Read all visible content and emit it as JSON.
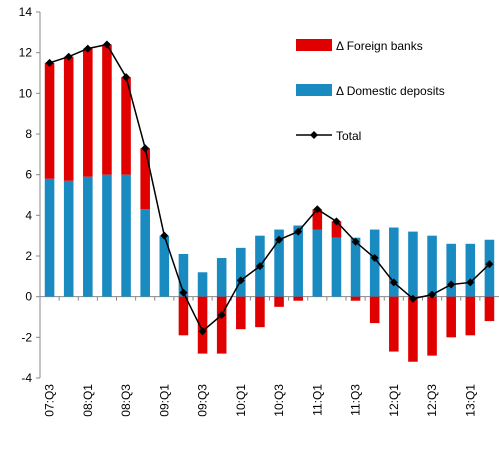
{
  "chart_data": {
    "type": "bar",
    "categories": [
      "07:Q3",
      null,
      "08:Q1",
      null,
      "08:Q3",
      null,
      "09:Q1",
      null,
      "09:Q3",
      null,
      "10:Q1",
      null,
      "10:Q3",
      null,
      "11:Q1",
      null,
      "11:Q3",
      null,
      "12:Q1",
      null,
      "12:Q3",
      null,
      "13:Q1",
      null
    ],
    "series": [
      {
        "name": "Δ Foreign banks",
        "color": "#e00000",
        "values": [
          5.7,
          6.1,
          6.3,
          6.4,
          4.8,
          3.0,
          0,
          -1.9,
          -2.8,
          -2.8,
          -1.6,
          -1.5,
          -0.5,
          -0.2,
          1.0,
          0.8,
          -0.2,
          -1.3,
          -2.7,
          -3.2,
          -2.9,
          -2.0,
          -1.9,
          -1.2
        ]
      },
      {
        "name": "Δ Domestic deposits",
        "color": "#1a8bc0",
        "values": [
          5.8,
          5.7,
          5.9,
          6.0,
          6.0,
          4.3,
          3.0,
          2.1,
          1.2,
          1.9,
          2.4,
          3.0,
          3.3,
          3.5,
          3.3,
          2.9,
          2.9,
          3.3,
          3.4,
          3.2,
          3.0,
          2.6,
          2.6,
          2.8
        ]
      },
      {
        "name": "Total",
        "type": "line",
        "color": "#000000",
        "values": [
          11.5,
          11.8,
          12.2,
          12.4,
          10.8,
          7.3,
          3.0,
          0.2,
          -1.7,
          -0.9,
          0.8,
          1.5,
          2.8,
          3.2,
          4.3,
          3.7,
          2.7,
          1.9,
          0.7,
          -0.1,
          0.1,
          0.6,
          0.7,
          1.6
        ]
      }
    ],
    "ylim": [
      -4,
      14
    ],
    "yticks": [
      -4,
      -2,
      0,
      2,
      4,
      6,
      8,
      10,
      12,
      14
    ]
  }
}
